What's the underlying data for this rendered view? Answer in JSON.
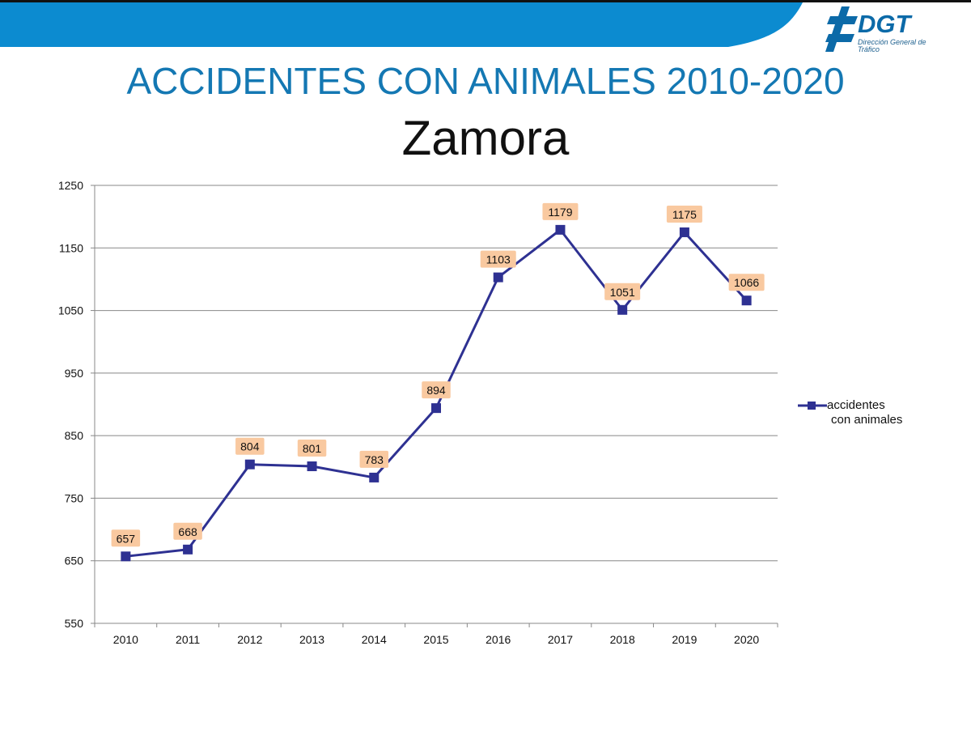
{
  "header": {
    "logo_text": "DGT",
    "logo_subtitle": "Dirección General de Tráfico",
    "band_color": "#0c8bd0"
  },
  "title": "ACCIDENTES CON ANIMALES 2010-2020",
  "subtitle": "Zamora",
  "chart_data": {
    "type": "line",
    "x": [
      "2010",
      "2011",
      "2012",
      "2013",
      "2014",
      "2015",
      "2016",
      "2017",
      "2018",
      "2019",
      "2020"
    ],
    "series": [
      {
        "name": "accidentes con animales",
        "values": [
          657,
          668,
          804,
          801,
          783,
          894,
          1103,
          1179,
          1051,
          1175,
          1066
        ],
        "color": "#2e3192",
        "marker": "square"
      }
    ],
    "ylim": [
      550,
      1250
    ],
    "yticks": [
      550,
      650,
      750,
      850,
      950,
      1050,
      1150,
      1250
    ],
    "grid": true,
    "legend_position": "right",
    "data_labels": true,
    "label_background": "#f9c9a0"
  },
  "legend": {
    "line1": "accidentes",
    "line2": "con animales"
  }
}
